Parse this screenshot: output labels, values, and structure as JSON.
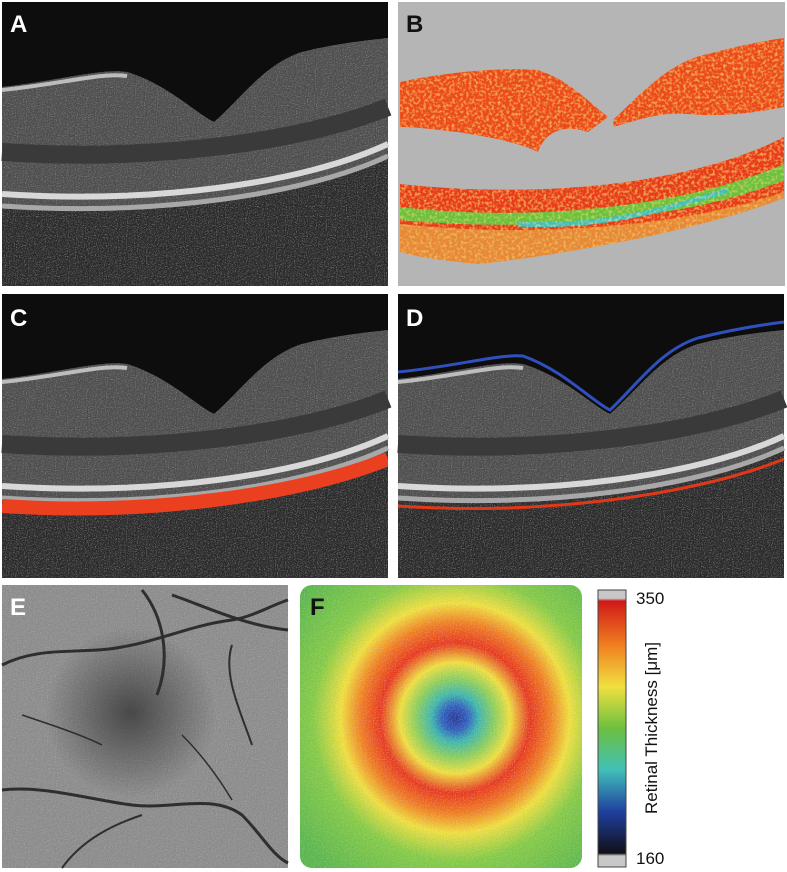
{
  "panels": {
    "a": {
      "label": "A"
    },
    "b": {
      "label": "B"
    },
    "c": {
      "label": "C"
    },
    "d": {
      "label": "D"
    },
    "e": {
      "label": "E"
    },
    "f": {
      "label": "F"
    }
  },
  "colorbar": {
    "title": "Retinal Thickness [μm]",
    "max": "350",
    "min": "160"
  }
}
